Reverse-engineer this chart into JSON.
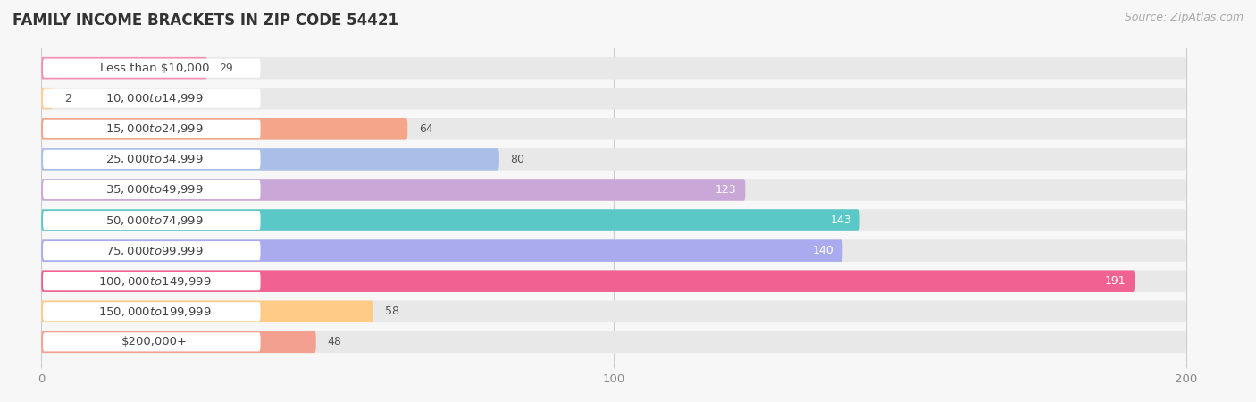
{
  "title": "FAMILY INCOME BRACKETS IN ZIP CODE 54421",
  "source": "Source: ZipAtlas.com",
  "categories": [
    "Less than $10,000",
    "$10,000 to $14,999",
    "$15,000 to $24,999",
    "$25,000 to $34,999",
    "$35,000 to $49,999",
    "$50,000 to $74,999",
    "$75,000 to $99,999",
    "$100,000 to $149,999",
    "$150,000 to $199,999",
    "$200,000+"
  ],
  "values": [
    29,
    2,
    64,
    80,
    123,
    143,
    140,
    191,
    58,
    48
  ],
  "colors": [
    "#F48FB1",
    "#FFCC99",
    "#F4A58A",
    "#AABFE8",
    "#C9A8D8",
    "#5BC8C8",
    "#AAAAEE",
    "#F06292",
    "#FFCC88",
    "#F4A090"
  ],
  "xmin": 0,
  "xmax": 200,
  "xticks": [
    0,
    100,
    200
  ],
  "background_color": "#f7f7f7",
  "bar_bg_color": "#e8e8e8",
  "title_fontsize": 12,
  "source_fontsize": 9,
  "label_fontsize": 9.5,
  "value_fontsize": 9,
  "value_inside_threshold": 100
}
